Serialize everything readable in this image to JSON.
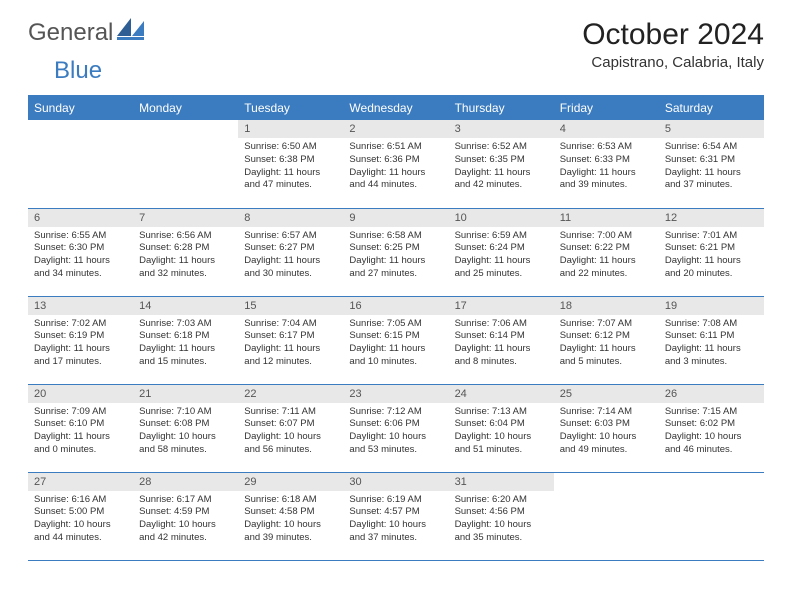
{
  "brand": {
    "part1": "General",
    "part2": "Blue"
  },
  "title": "October 2024",
  "location": "Capistrano, Calabria, Italy",
  "colors": {
    "header_bg": "#3b7bbf",
    "header_text": "#ffffff",
    "daynum_bg": "#e8e8e8",
    "rule": "#3b7bbf",
    "text": "#333333",
    "background": "#ffffff"
  },
  "weekdays": [
    "Sunday",
    "Monday",
    "Tuesday",
    "Wednesday",
    "Thursday",
    "Friday",
    "Saturday"
  ],
  "weeks": [
    [
      {
        "n": "",
        "sr": "",
        "ss": "",
        "dl": ""
      },
      {
        "n": "",
        "sr": "",
        "ss": "",
        "dl": ""
      },
      {
        "n": "1",
        "sr": "Sunrise: 6:50 AM",
        "ss": "Sunset: 6:38 PM",
        "dl": "Daylight: 11 hours and 47 minutes."
      },
      {
        "n": "2",
        "sr": "Sunrise: 6:51 AM",
        "ss": "Sunset: 6:36 PM",
        "dl": "Daylight: 11 hours and 44 minutes."
      },
      {
        "n": "3",
        "sr": "Sunrise: 6:52 AM",
        "ss": "Sunset: 6:35 PM",
        "dl": "Daylight: 11 hours and 42 minutes."
      },
      {
        "n": "4",
        "sr": "Sunrise: 6:53 AM",
        "ss": "Sunset: 6:33 PM",
        "dl": "Daylight: 11 hours and 39 minutes."
      },
      {
        "n": "5",
        "sr": "Sunrise: 6:54 AM",
        "ss": "Sunset: 6:31 PM",
        "dl": "Daylight: 11 hours and 37 minutes."
      }
    ],
    [
      {
        "n": "6",
        "sr": "Sunrise: 6:55 AM",
        "ss": "Sunset: 6:30 PM",
        "dl": "Daylight: 11 hours and 34 minutes."
      },
      {
        "n": "7",
        "sr": "Sunrise: 6:56 AM",
        "ss": "Sunset: 6:28 PM",
        "dl": "Daylight: 11 hours and 32 minutes."
      },
      {
        "n": "8",
        "sr": "Sunrise: 6:57 AM",
        "ss": "Sunset: 6:27 PM",
        "dl": "Daylight: 11 hours and 30 minutes."
      },
      {
        "n": "9",
        "sr": "Sunrise: 6:58 AM",
        "ss": "Sunset: 6:25 PM",
        "dl": "Daylight: 11 hours and 27 minutes."
      },
      {
        "n": "10",
        "sr": "Sunrise: 6:59 AM",
        "ss": "Sunset: 6:24 PM",
        "dl": "Daylight: 11 hours and 25 minutes."
      },
      {
        "n": "11",
        "sr": "Sunrise: 7:00 AM",
        "ss": "Sunset: 6:22 PM",
        "dl": "Daylight: 11 hours and 22 minutes."
      },
      {
        "n": "12",
        "sr": "Sunrise: 7:01 AM",
        "ss": "Sunset: 6:21 PM",
        "dl": "Daylight: 11 hours and 20 minutes."
      }
    ],
    [
      {
        "n": "13",
        "sr": "Sunrise: 7:02 AM",
        "ss": "Sunset: 6:19 PM",
        "dl": "Daylight: 11 hours and 17 minutes."
      },
      {
        "n": "14",
        "sr": "Sunrise: 7:03 AM",
        "ss": "Sunset: 6:18 PM",
        "dl": "Daylight: 11 hours and 15 minutes."
      },
      {
        "n": "15",
        "sr": "Sunrise: 7:04 AM",
        "ss": "Sunset: 6:17 PM",
        "dl": "Daylight: 11 hours and 12 minutes."
      },
      {
        "n": "16",
        "sr": "Sunrise: 7:05 AM",
        "ss": "Sunset: 6:15 PM",
        "dl": "Daylight: 11 hours and 10 minutes."
      },
      {
        "n": "17",
        "sr": "Sunrise: 7:06 AM",
        "ss": "Sunset: 6:14 PM",
        "dl": "Daylight: 11 hours and 8 minutes."
      },
      {
        "n": "18",
        "sr": "Sunrise: 7:07 AM",
        "ss": "Sunset: 6:12 PM",
        "dl": "Daylight: 11 hours and 5 minutes."
      },
      {
        "n": "19",
        "sr": "Sunrise: 7:08 AM",
        "ss": "Sunset: 6:11 PM",
        "dl": "Daylight: 11 hours and 3 minutes."
      }
    ],
    [
      {
        "n": "20",
        "sr": "Sunrise: 7:09 AM",
        "ss": "Sunset: 6:10 PM",
        "dl": "Daylight: 11 hours and 0 minutes."
      },
      {
        "n": "21",
        "sr": "Sunrise: 7:10 AM",
        "ss": "Sunset: 6:08 PM",
        "dl": "Daylight: 10 hours and 58 minutes."
      },
      {
        "n": "22",
        "sr": "Sunrise: 7:11 AM",
        "ss": "Sunset: 6:07 PM",
        "dl": "Daylight: 10 hours and 56 minutes."
      },
      {
        "n": "23",
        "sr": "Sunrise: 7:12 AM",
        "ss": "Sunset: 6:06 PM",
        "dl": "Daylight: 10 hours and 53 minutes."
      },
      {
        "n": "24",
        "sr": "Sunrise: 7:13 AM",
        "ss": "Sunset: 6:04 PM",
        "dl": "Daylight: 10 hours and 51 minutes."
      },
      {
        "n": "25",
        "sr": "Sunrise: 7:14 AM",
        "ss": "Sunset: 6:03 PM",
        "dl": "Daylight: 10 hours and 49 minutes."
      },
      {
        "n": "26",
        "sr": "Sunrise: 7:15 AM",
        "ss": "Sunset: 6:02 PM",
        "dl": "Daylight: 10 hours and 46 minutes."
      }
    ],
    [
      {
        "n": "27",
        "sr": "Sunrise: 6:16 AM",
        "ss": "Sunset: 5:00 PM",
        "dl": "Daylight: 10 hours and 44 minutes."
      },
      {
        "n": "28",
        "sr": "Sunrise: 6:17 AM",
        "ss": "Sunset: 4:59 PM",
        "dl": "Daylight: 10 hours and 42 minutes."
      },
      {
        "n": "29",
        "sr": "Sunrise: 6:18 AM",
        "ss": "Sunset: 4:58 PM",
        "dl": "Daylight: 10 hours and 39 minutes."
      },
      {
        "n": "30",
        "sr": "Sunrise: 6:19 AM",
        "ss": "Sunset: 4:57 PM",
        "dl": "Daylight: 10 hours and 37 minutes."
      },
      {
        "n": "31",
        "sr": "Sunrise: 6:20 AM",
        "ss": "Sunset: 4:56 PM",
        "dl": "Daylight: 10 hours and 35 minutes."
      },
      {
        "n": "",
        "sr": "",
        "ss": "",
        "dl": ""
      },
      {
        "n": "",
        "sr": "",
        "ss": "",
        "dl": ""
      }
    ]
  ]
}
